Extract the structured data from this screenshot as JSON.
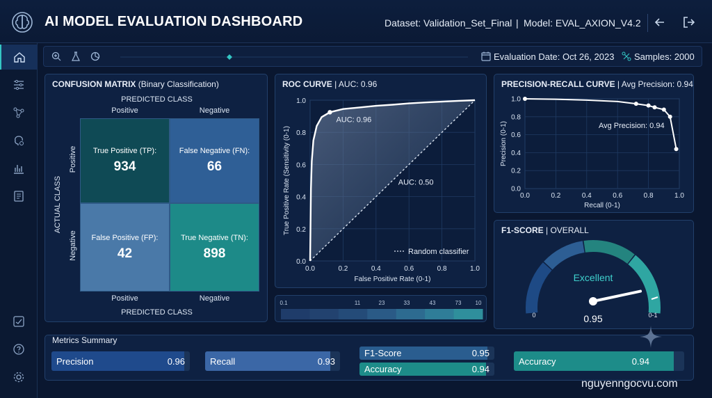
{
  "header": {
    "title": "AI MODEL EVALUATION DASHBOARD",
    "dataset_label": "Dataset: Validation_Set_Final",
    "separator": "|",
    "model_label": "Model: EVAL_AXION_V4.2"
  },
  "toolbar": {
    "evaluation_date": "Evaluation Date: Oct 26, 2023",
    "samples": "Samples: 2000"
  },
  "confusion_matrix": {
    "title_bold": "CONFUSION MATRIX",
    "title_rest": " (Binary Classification)",
    "predicted_class_label": "PREDICTED CLASS",
    "actual_class_label": "ACTUAL CLASS",
    "col_positive": "Positive",
    "col_negative": "Negative",
    "row_positive": "Positive",
    "row_negative": "Negative",
    "tp_label": "True Positive (TP):",
    "tp_value": "934",
    "fn_label": "False Negative (FN):",
    "fn_value": "66",
    "fp_label": "False Positive (FP):",
    "fp_value": "42",
    "tn_label": "True Negative (TN):",
    "tn_value": "898",
    "colors": {
      "tp": "#0f4a55",
      "fn": "#2f5f96",
      "fp": "#4a79a8",
      "tn": "#1d8a88"
    }
  },
  "roc": {
    "title_bold": "ROC CURVE",
    "title_rest": " | AUC: 0.96",
    "auc_label": "AUC: 0.96",
    "random_auc_label": "AUC: 0.50",
    "legend": "Random classifier",
    "xlabel": "False Positive Rate (0-1)",
    "ylabel": "True Positive Rate (Sensitivity (0-1)",
    "ticks": [
      "0.0",
      "0.2",
      "0.4",
      "0.6",
      "0.8",
      "1.0"
    ]
  },
  "histogram": {
    "labels": [
      "0.1",
      "11",
      "23",
      "33",
      "43",
      "73",
      "10"
    ],
    "colors": [
      "#1f3c6a",
      "#22426f",
      "#244b78",
      "#2a5a86",
      "#2d6b90",
      "#2f7d98",
      "#2f8f9c"
    ]
  },
  "pr": {
    "title_bold": "PRECISION-RECALL CURVE",
    "title_rest": " | Avg Precision: 0.94",
    "avg_label": "Avg Precision: 0.94",
    "xlabel": "Recall (0-1)",
    "ylabel": "Precision (0-1)",
    "ticks": [
      "0.0",
      "0.2",
      "0.4",
      "0.6",
      "0.8",
      "1.0"
    ]
  },
  "f1": {
    "title_bold": "F1-SCORE",
    "title_rest": " | OVERALL",
    "rating": "Excellent",
    "min_label": "0",
    "max_label": "0-1",
    "value_label": "0.95",
    "value": 0.95
  },
  "metrics": {
    "title": "Metrics Summary",
    "items": [
      {
        "label": "Precision",
        "value": "0.96",
        "fill": 0.96,
        "color": "#1f4a8c"
      },
      {
        "label": "Recall",
        "value": "0.93",
        "fill": 0.93,
        "color": "#3b67a6"
      },
      {
        "label": "F1-Score",
        "value": "0.95",
        "fill": 0.95,
        "color": "#2a5d8f"
      },
      {
        "label": "Accuracy",
        "value": "0.94",
        "fill": 0.94,
        "color": "#1d8c89"
      },
      {
        "label": "Accuracy",
        "value": "0.94",
        "fill": 0.94,
        "color": "#1d8c89"
      }
    ]
  },
  "chart_data": [
    {
      "type": "line",
      "title": "ROC CURVE | AUC: 0.96",
      "xlabel": "False Positive Rate (0-1)",
      "ylabel": "True Positive Rate (Sensitivity (0-1)",
      "xlim": [
        0,
        1
      ],
      "ylim": [
        0,
        1
      ],
      "series": [
        {
          "name": "",
          "x": [
            0,
            0.005,
            0.01,
            0.02,
            0.04,
            0.07,
            0.12,
            0.2,
            0.3,
            0.4,
            0.5,
            0.6,
            0.7,
            0.8,
            0.9,
            1.0
          ],
          "y": [
            0,
            0.45,
            0.62,
            0.75,
            0.84,
            0.895,
            0.925,
            0.945,
            0.955,
            0.965,
            0.972,
            0.98,
            0.986,
            0.991,
            0.996,
            1.0
          ]
        },
        {
          "name": "Random classifier",
          "x": [
            0,
            1
          ],
          "y": [
            0,
            1
          ]
        }
      ],
      "marker_point": {
        "x": 0.12,
        "y": 0.925
      }
    },
    {
      "type": "line",
      "title": "PRECISION-RECALL CURVE | Avg Precision: 0.94",
      "xlabel": "Recall (0-1)",
      "ylabel": "Precision (0-1)",
      "xlim": [
        0,
        1
      ],
      "ylim": [
        0,
        1
      ],
      "series": [
        {
          "name": "",
          "x": [
            0,
            0.2,
            0.4,
            0.6,
            0.65,
            0.72,
            0.8,
            0.84,
            0.9,
            0.94,
            0.98
          ],
          "y": [
            1.0,
            0.995,
            0.985,
            0.97,
            0.96,
            0.945,
            0.925,
            0.905,
            0.88,
            0.8,
            0.44
          ],
          "markers": [
            0,
            5,
            6,
            7,
            8,
            9,
            10
          ]
        }
      ]
    }
  ]
}
